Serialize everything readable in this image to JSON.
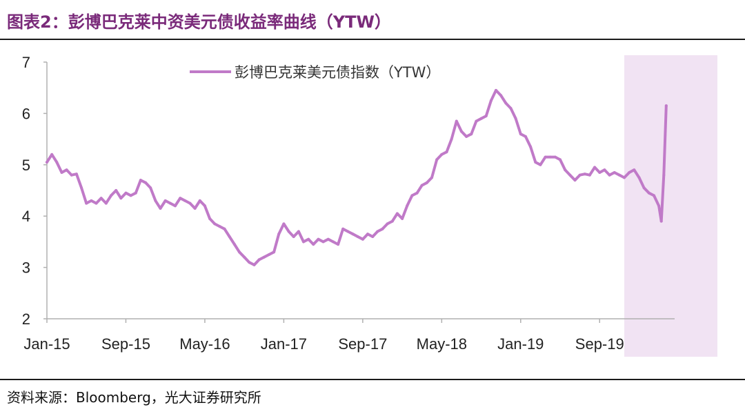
{
  "figure": {
    "title": "图表2：彭博巴克莱中资美元债收益率曲线（YTW）",
    "source": "资料来源：Bloomberg，光大证券研究所"
  },
  "colors": {
    "title": "#7a2a7a",
    "line": "#c07ac8",
    "highlight": "#f1e3f3",
    "axis": "#b0b0b0"
  },
  "chart_data": {
    "type": "line",
    "title": "",
    "xlabel": "",
    "ylabel": "",
    "ylim": [
      2,
      7
    ],
    "y_ticks": [
      "2",
      "3",
      "4",
      "5",
      "6",
      "7"
    ],
    "x_ticks": [
      "Jan-15",
      "Sep-15",
      "May-16",
      "Jan-17",
      "Sep-17",
      "May-18",
      "Jan-19",
      "Sep-19"
    ],
    "legend_position": "top-center",
    "grid": false,
    "highlight_range": [
      "2019-11",
      "2020-04"
    ],
    "series": [
      {
        "name": "彭博巴克莱美元债指数（YTW）",
        "points": [
          [
            "2015-01",
            5.05
          ],
          [
            "2015-01",
            5.2
          ],
          [
            "2015-02",
            5.05
          ],
          [
            "2015-02",
            4.85
          ],
          [
            "2015-03",
            4.9
          ],
          [
            "2015-03",
            4.8
          ],
          [
            "2015-04",
            4.82
          ],
          [
            "2015-04",
            4.55
          ],
          [
            "2015-05",
            4.25
          ],
          [
            "2015-05",
            4.3
          ],
          [
            "2015-06",
            4.25
          ],
          [
            "2015-06",
            4.35
          ],
          [
            "2015-07",
            4.25
          ],
          [
            "2015-07",
            4.4
          ],
          [
            "2015-08",
            4.5
          ],
          [
            "2015-08",
            4.35
          ],
          [
            "2015-09",
            4.45
          ],
          [
            "2015-09",
            4.4
          ],
          [
            "2015-10",
            4.45
          ],
          [
            "2015-10",
            4.7
          ],
          [
            "2015-11",
            4.65
          ],
          [
            "2015-11",
            4.55
          ],
          [
            "2015-12",
            4.3
          ],
          [
            "2015-12",
            4.15
          ],
          [
            "2016-01",
            4.3
          ],
          [
            "2016-01",
            4.25
          ],
          [
            "2016-02",
            4.2
          ],
          [
            "2016-02",
            4.35
          ],
          [
            "2016-03",
            4.3
          ],
          [
            "2016-03",
            4.25
          ],
          [
            "2016-04",
            4.15
          ],
          [
            "2016-04",
            4.3
          ],
          [
            "2016-05",
            4.2
          ],
          [
            "2016-05",
            3.95
          ],
          [
            "2016-06",
            3.85
          ],
          [
            "2016-06",
            3.8
          ],
          [
            "2016-07",
            3.75
          ],
          [
            "2016-07",
            3.6
          ],
          [
            "2016-08",
            3.45
          ],
          [
            "2016-08",
            3.3
          ],
          [
            "2016-09",
            3.2
          ],
          [
            "2016-09",
            3.1
          ],
          [
            "2016-10",
            3.05
          ],
          [
            "2016-10",
            3.15
          ],
          [
            "2016-11",
            3.2
          ],
          [
            "2016-11",
            3.25
          ],
          [
            "2016-12",
            3.3
          ],
          [
            "2016-12",
            3.65
          ],
          [
            "2017-01",
            3.85
          ],
          [
            "2017-01",
            3.7
          ],
          [
            "2017-02",
            3.6
          ],
          [
            "2017-02",
            3.7
          ],
          [
            "2017-03",
            3.5
          ],
          [
            "2017-03",
            3.55
          ],
          [
            "2017-04",
            3.45
          ],
          [
            "2017-04",
            3.55
          ],
          [
            "2017-05",
            3.5
          ],
          [
            "2017-05",
            3.55
          ],
          [
            "2017-06",
            3.5
          ],
          [
            "2017-06",
            3.45
          ],
          [
            "2017-07",
            3.75
          ],
          [
            "2017-07",
            3.7
          ],
          [
            "2017-08",
            3.65
          ],
          [
            "2017-08",
            3.6
          ],
          [
            "2017-09",
            3.55
          ],
          [
            "2017-09",
            3.65
          ],
          [
            "2017-10",
            3.6
          ],
          [
            "2017-10",
            3.7
          ],
          [
            "2017-11",
            3.75
          ],
          [
            "2017-11",
            3.85
          ],
          [
            "2017-12",
            3.9
          ],
          [
            "2017-12",
            4.05
          ],
          [
            "2018-01",
            3.95
          ],
          [
            "2018-01",
            4.2
          ],
          [
            "2018-02",
            4.4
          ],
          [
            "2018-02",
            4.45
          ],
          [
            "2018-03",
            4.6
          ],
          [
            "2018-03",
            4.65
          ],
          [
            "2018-04",
            4.75
          ],
          [
            "2018-04",
            5.1
          ],
          [
            "2018-05",
            5.2
          ],
          [
            "2018-05",
            5.25
          ],
          [
            "2018-06",
            5.5
          ],
          [
            "2018-06",
            5.85
          ],
          [
            "2018-07",
            5.65
          ],
          [
            "2018-07",
            5.55
          ],
          [
            "2018-08",
            5.6
          ],
          [
            "2018-08",
            5.85
          ],
          [
            "2018-09",
            5.9
          ],
          [
            "2018-09",
            5.95
          ],
          [
            "2018-10",
            6.25
          ],
          [
            "2018-10",
            6.45
          ],
          [
            "2018-11",
            6.35
          ],
          [
            "2018-11",
            6.2
          ],
          [
            "2018-12",
            6.1
          ],
          [
            "2018-12",
            5.9
          ],
          [
            "2019-01",
            5.6
          ],
          [
            "2019-01",
            5.55
          ],
          [
            "2019-02",
            5.35
          ],
          [
            "2019-02",
            5.05
          ],
          [
            "2019-03",
            5.0
          ],
          [
            "2019-03",
            5.15
          ],
          [
            "2019-04",
            5.15
          ],
          [
            "2019-04",
            5.15
          ],
          [
            "2019-05",
            5.1
          ],
          [
            "2019-05",
            4.9
          ],
          [
            "2019-06",
            4.8
          ],
          [
            "2019-06",
            4.7
          ],
          [
            "2019-07",
            4.8
          ],
          [
            "2019-07",
            4.82
          ],
          [
            "2019-08",
            4.8
          ],
          [
            "2019-08",
            4.95
          ],
          [
            "2019-09",
            4.85
          ],
          [
            "2019-09",
            4.9
          ],
          [
            "2019-10",
            4.8
          ],
          [
            "2019-10",
            4.85
          ],
          [
            "2019-11",
            4.8
          ],
          [
            "2019-11",
            4.75
          ],
          [
            "2019-12",
            4.85
          ],
          [
            "2019-12",
            4.9
          ],
          [
            "2020-01",
            4.75
          ],
          [
            "2020-01",
            4.55
          ],
          [
            "2020-02",
            4.45
          ],
          [
            "2020-02",
            4.4
          ],
          [
            "2020-03",
            4.2
          ],
          [
            "2020-03",
            3.9
          ],
          [
            "2020-03",
            4.8
          ],
          [
            "2020-03",
            6.15
          ]
        ]
      }
    ]
  }
}
